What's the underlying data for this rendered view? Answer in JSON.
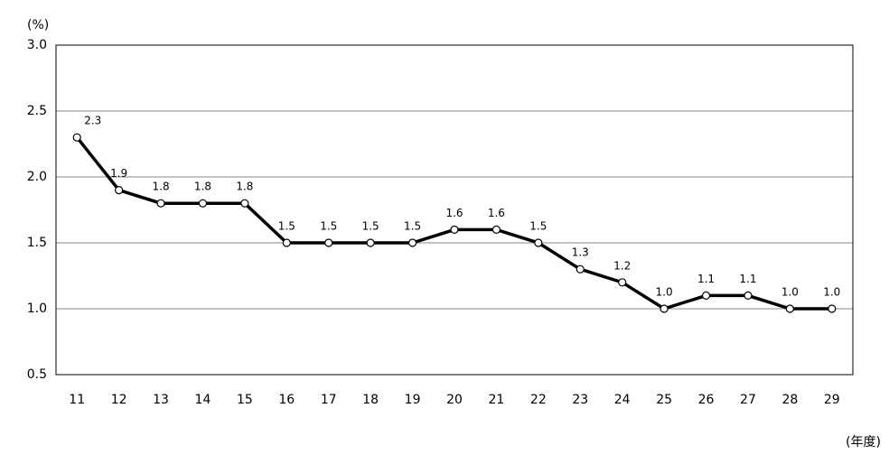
{
  "chart_data": {
    "type": "line",
    "y_label": "(%)",
    "x_label": "(年度)",
    "categories": [
      "11",
      "12",
      "13",
      "14",
      "15",
      "16",
      "17",
      "18",
      "19",
      "20",
      "21",
      "22",
      "23",
      "24",
      "25",
      "26",
      "27",
      "28",
      "29"
    ],
    "series": [
      {
        "name": "rate",
        "color": "#000000",
        "values": [
          2.3,
          1.9,
          1.8,
          1.8,
          1.8,
          1.5,
          1.5,
          1.5,
          1.5,
          1.6,
          1.6,
          1.5,
          1.3,
          1.2,
          1,
          1.1,
          1.1,
          1,
          1
        ],
        "value_labels": [
          "2.3",
          "1.9",
          "1.8",
          "1.8",
          "1.8",
          "1.5",
          "1.5",
          "1.5",
          "1.5",
          "1.6",
          "1.6",
          "1.5",
          "1.3",
          "1.2",
          "1.0",
          "1.1",
          "1.1",
          "1.0",
          "1.0"
        ]
      }
    ],
    "ylim": [
      0.5,
      3
    ],
    "yticks": [
      0.5,
      {
        "value": 1,
        "label": "1.0"
      },
      1.5,
      {
        "value": 2,
        "label": "2.0"
      },
      2.5,
      {
        "value": 3,
        "label": "3.0"
      }
    ],
    "grid": true
  }
}
